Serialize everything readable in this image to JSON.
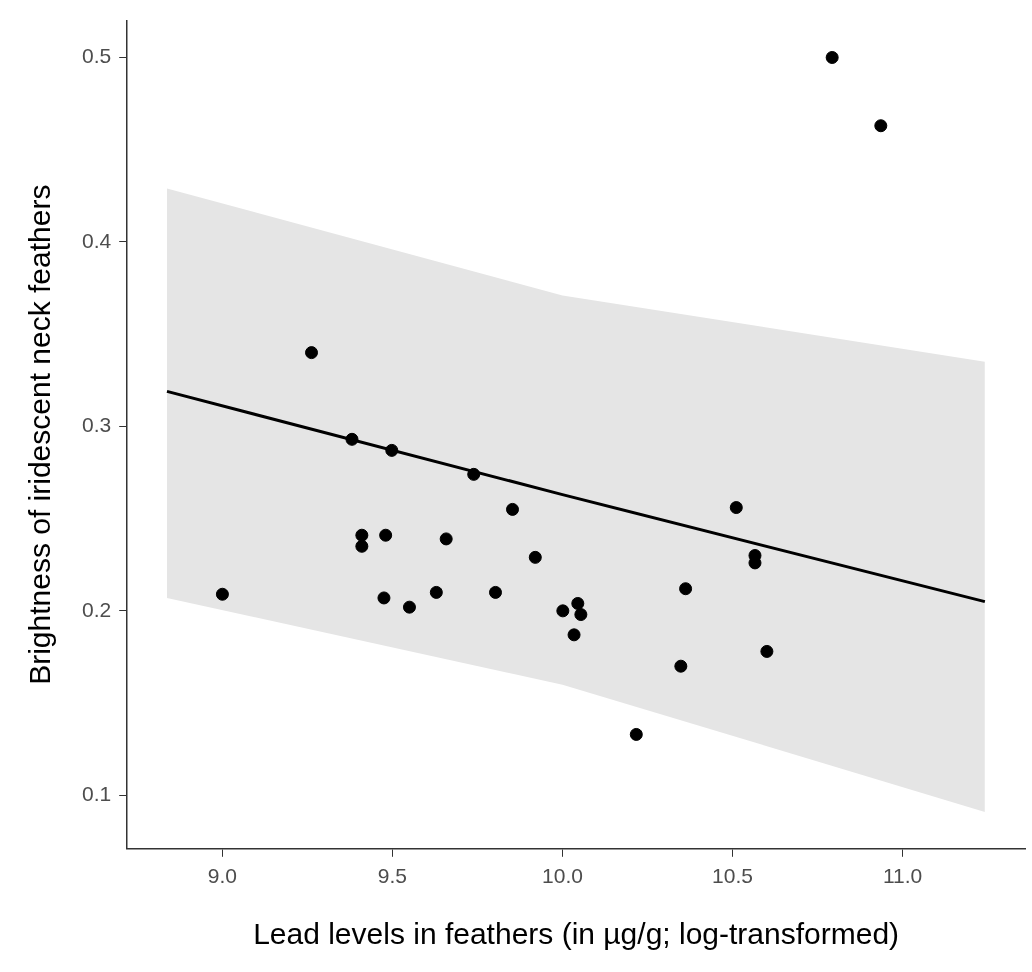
{
  "chart_data": {
    "type": "scatter",
    "xlabel": "Lead levels in feathers (in µg/g; log-transformed)",
    "ylabel": "Brightness of iridescent neck feathers",
    "xlim": [
      8.72,
      11.36
    ],
    "xticks": [
      {
        "value": 9,
        "label": "9.0"
      },
      9.5,
      {
        "value": 10,
        "label": "10.0"
      },
      10.5,
      {
        "value": 11,
        "label": "11.0"
      }
    ],
    "ylim": [
      0.071,
      0.52
    ],
    "yticks": [
      0.1,
      0.2,
      0.3,
      0.4,
      0.5
    ],
    "grid": false,
    "legend": false,
    "marker": "circle",
    "series": [
      {
        "color": "#000000",
        "x": [
          9.0,
          9.262,
          9.381,
          9.498,
          9.41,
          9.41,
          9.48,
          9.475,
          9.55,
          9.629,
          9.658,
          9.739,
          9.803,
          9.853,
          9.92,
          10.001,
          10.045,
          10.054,
          10.034,
          10.217,
          10.348,
          10.362,
          10.511,
          10.566,
          10.566,
          10.601,
          10.793,
          10.936
        ],
        "values": [
          0.209,
          0.34,
          0.293,
          0.287,
          0.241,
          0.235,
          0.241,
          0.207,
          0.202,
          0.21,
          0.239,
          0.274,
          0.21,
          0.255,
          0.229,
          0.2,
          0.204,
          0.198,
          0.187,
          0.133,
          0.17,
          0.212,
          0.256,
          0.23,
          0.226,
          0.178,
          0.5,
          0.463
        ]
      },
      {
        "type": "line",
        "color": "#000000",
        "line_style": "solid",
        "marker": "none",
        "x": [
          8.837,
          10.0,
          11.242
        ],
        "values": [
          0.319,
          0.263,
          0.205
        ],
        "lower": [
          0.207,
          0.16,
          0.091
        ],
        "upper": [
          0.429,
          0.371,
          0.335
        ]
      }
    ]
  }
}
